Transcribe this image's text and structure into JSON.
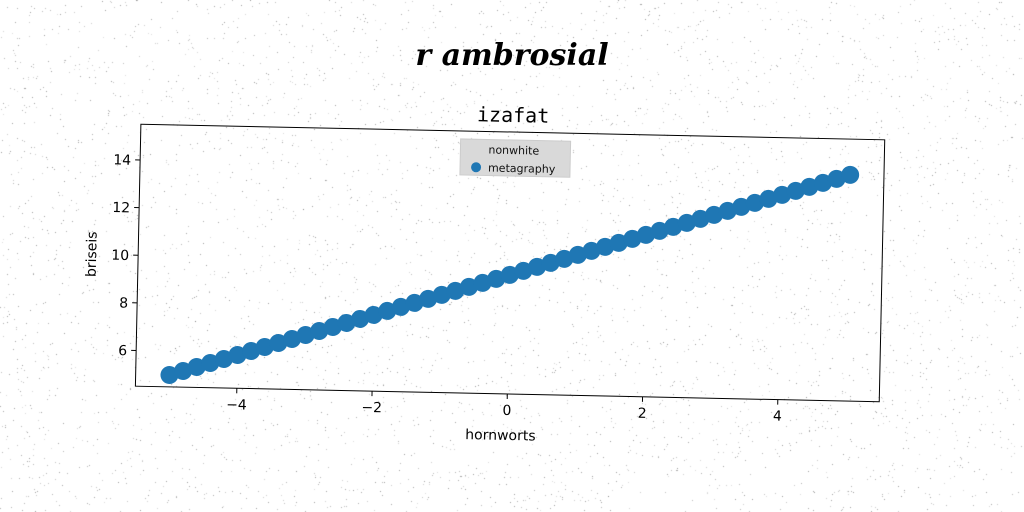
{
  "figure": {
    "suptitle": "r ambrosial"
  },
  "chart_data": {
    "type": "scatter",
    "title": "izafat",
    "xlabel": "hornworts",
    "ylabel": "briseis",
    "xlim": [
      -5.5,
      5.5
    ],
    "ylim": [
      4.5,
      15.5
    ],
    "xticks": [
      -4,
      -2,
      0,
      2,
      4
    ],
    "xtick_labels": [
      "−4",
      "−2",
      "0",
      "2",
      "4"
    ],
    "yticks": [
      6,
      8,
      10,
      12,
      14
    ],
    "ytick_labels": [
      "6",
      "8",
      "10",
      "12",
      "14"
    ],
    "grid": false,
    "legend": {
      "placement": "upper center"
    },
    "series": [
      {
        "name": "nonwhite",
        "x": [],
        "y": [],
        "color": "#7f7f7f"
      },
      {
        "name": "metagraphy",
        "color": "#1f77b4",
        "x": [
          -5.0,
          -4.8,
          -4.6,
          -4.4,
          -4.2,
          -4.0,
          -3.8,
          -3.6,
          -3.4,
          -3.2,
          -3.0,
          -2.8,
          -2.6,
          -2.4,
          -2.2,
          -2.0,
          -1.8,
          -1.6,
          -1.4,
          -1.2,
          -1.0,
          -0.8,
          -0.6,
          -0.4,
          -0.2,
          0.0,
          0.2,
          0.4,
          0.6,
          0.8,
          1.0,
          1.2,
          1.4,
          1.6,
          1.8,
          2.0,
          2.2,
          2.4,
          2.6,
          2.8,
          3.0,
          3.2,
          3.4,
          3.6,
          3.8,
          4.0,
          4.2,
          4.4,
          4.6,
          4.8,
          5.0
        ],
        "y": [
          5.0,
          5.18,
          5.36,
          5.54,
          5.72,
          5.9,
          6.08,
          6.26,
          6.44,
          6.62,
          6.8,
          6.98,
          7.16,
          7.34,
          7.52,
          7.7,
          7.88,
          8.06,
          8.24,
          8.42,
          8.6,
          8.78,
          8.96,
          9.14,
          9.32,
          9.5,
          9.68,
          9.86,
          10.04,
          10.22,
          10.4,
          10.58,
          10.76,
          10.94,
          11.12,
          11.3,
          11.48,
          11.66,
          11.84,
          12.02,
          12.2,
          12.38,
          12.56,
          12.74,
          12.92,
          13.1,
          13.28,
          13.46,
          13.64,
          13.82,
          14.0
        ]
      }
    ]
  }
}
